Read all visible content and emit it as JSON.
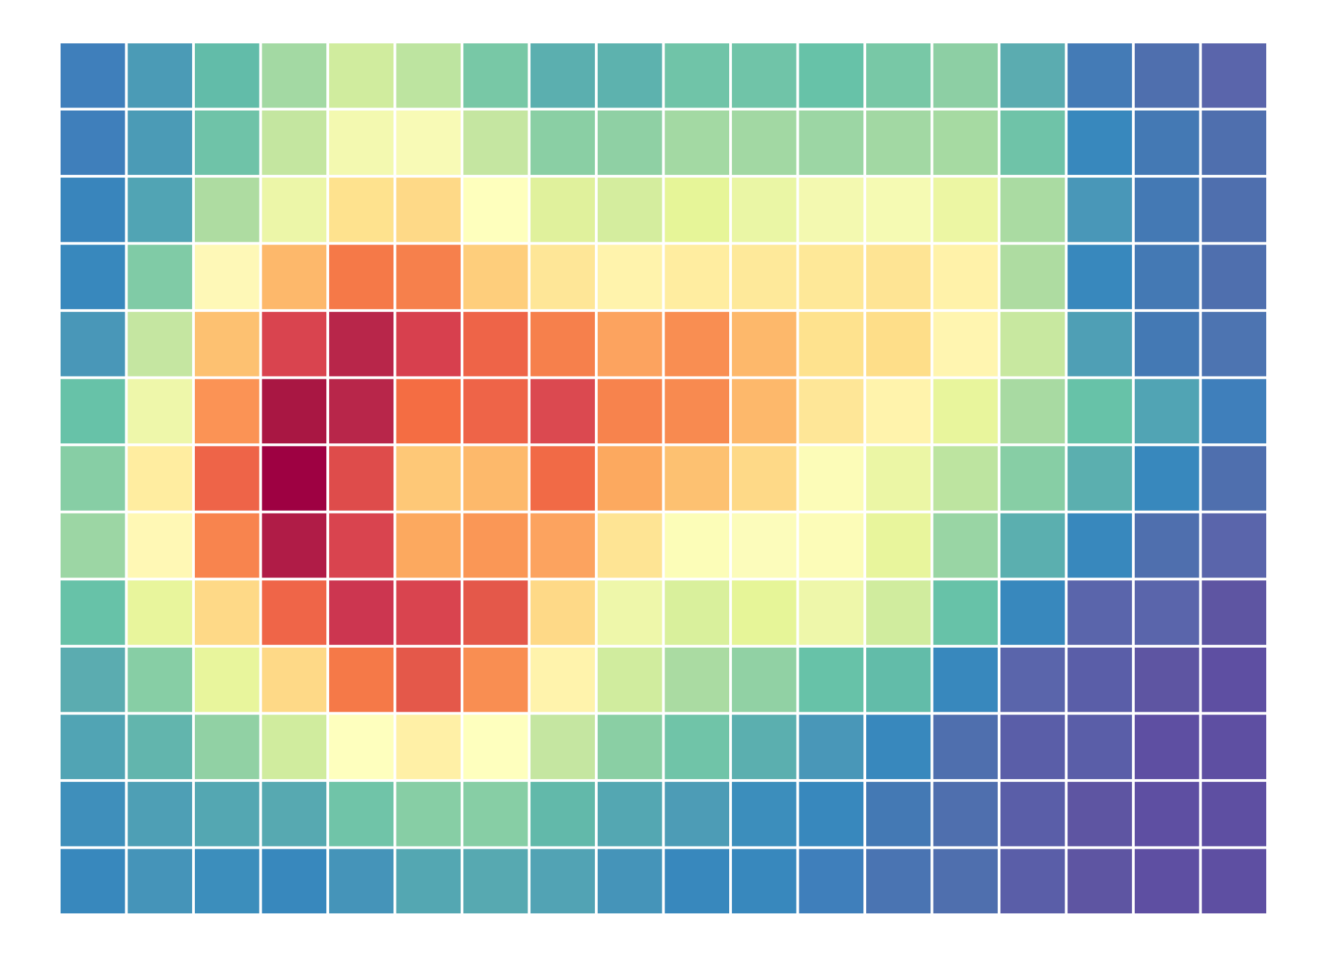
{
  "chart_data": {
    "type": "heatmap",
    "title": "",
    "xlabel": "",
    "ylabel": "",
    "axes_visible": false,
    "colorbar": false,
    "grid": true,
    "cell_border_color": "#ffffff",
    "colormap": "Spectral",
    "rows": 13,
    "cols": 18,
    "colors": [
      [
        "#3f7fbb",
        "#4b9bb6",
        "#62bca9",
        "#a3d9a3",
        "#d0ec9e",
        "#bde4a0",
        "#78c8a6",
        "#5bafaf",
        "#5db2ae",
        "#70c4a8",
        "#70c4a8",
        "#67c2a8",
        "#78c8a6",
        "#8dcfa4",
        "#5bacb0",
        "#447bb6",
        "#4f6fae",
        "#5a65ab"
      ],
      [
        "#3f7fbb",
        "#4b9bb6",
        "#6fc3a8",
        "#c4e6a0",
        "#f3f9b0",
        "#f8fab6",
        "#c5e6a1",
        "#8acfa4",
        "#8fd0a4",
        "#a3d9a3",
        "#a2d8a3",
        "#9cd6a4",
        "#a2d8a3",
        "#a6daa2",
        "#6fc3a8",
        "#3888bd",
        "#4479b4",
        "#4f6fae"
      ],
      [
        "#3985bc",
        "#51a4b4",
        "#aedca1",
        "#ecf6a8",
        "#fee28e",
        "#fed987",
        "#feffbd",
        "#e0f19c",
        "#d4ed9e",
        "#e6f598",
        "#eaf6a5",
        "#f3f9b0",
        "#f5fab3",
        "#ecf6a3",
        "#aadba2",
        "#4997b8",
        "#4479b4",
        "#4f6fae"
      ],
      [
        "#3888bd",
        "#80cba6",
        "#fef8b7",
        "#fdb86b",
        "#f57948",
        "#f6804c",
        "#fece7c",
        "#fee697",
        "#fff3ac",
        "#ffeda0",
        "#fee99a",
        "#fee898",
        "#fee494",
        "#fff2a9",
        "#aedca1",
        "#3888bd",
        "#4479b4",
        "#4f6fae"
      ],
      [
        "#4997b8",
        "#c5e6a1",
        "#fdc171",
        "#d9444f",
        "#b8264a",
        "#d7404e",
        "#ee6448",
        "#f6804c",
        "#fca35f",
        "#f98e52",
        "#fdb86b",
        "#fee28e",
        "#fede89",
        "#fff5b0",
        "#c8e8a0",
        "#4f9fb5",
        "#4479b4",
        "#4d74b1"
      ],
      [
        "#67c2a8",
        "#eef7aa",
        "#fb9355",
        "#a91743",
        "#b8264a",
        "#f46d43",
        "#ee6448",
        "#db4950",
        "#f7834d",
        "#f88a50",
        "#fdb86b",
        "#fee697",
        "#fff3ac",
        "#e8f59c",
        "#a8daa2",
        "#67c2a8",
        "#51a4b4",
        "#3f7fbb"
      ],
      [
        "#87cea5",
        "#ffeda0",
        "#ee6448",
        "#9e0142",
        "#de4c4b",
        "#fec877",
        "#fdb96b",
        "#f16a46",
        "#fca95f",
        "#fdc171",
        "#fed987",
        "#fcfcb8",
        "#ebf6a5",
        "#bde4a0",
        "#87cea5",
        "#5bafaf",
        "#3888bd",
        "#4f6fae"
      ],
      [
        "#9cd6a4",
        "#fff8b5",
        "#f8844e",
        "#b01c47",
        "#d9444f",
        "#fca95f",
        "#fa9756",
        "#fca35f",
        "#fee494",
        "#fcfdb8",
        "#fcfcbb",
        "#fcfcb8",
        "#e8f59c",
        "#99d5a4",
        "#5bafaf",
        "#3888bd",
        "#4f6fae",
        "#5a65ab"
      ],
      [
        "#67c2a8",
        "#e8f59c",
        "#fed987",
        "#ef6548",
        "#cc3650",
        "#d9444f",
        "#e4584a",
        "#fed987",
        "#eef7aa",
        "#d9f09c",
        "#e6f598",
        "#eef7aa",
        "#d0ec9e",
        "#67c2a8",
        "#3888bd",
        "#5a65ab",
        "#5a65ab",
        "#5e55a2"
      ],
      [
        "#5bacb0",
        "#87cea5",
        "#e8f59c",
        "#fed987",
        "#f57948",
        "#e4584a",
        "#f98e52",
        "#fff3ac",
        "#d0ec9e",
        "#aadba2",
        "#91d1a4",
        "#67c2a8",
        "#62bca9",
        "#3888bd",
        "#5a65ab",
        "#5a5ea8",
        "#5e55a2",
        "#5e4fa2"
      ],
      [
        "#51a4b4",
        "#62b5ad",
        "#91d1a4",
        "#d0ec9e",
        "#feffbe",
        "#fff0a6",
        "#feffbe",
        "#c5e6a1",
        "#8acfa4",
        "#70c4a8",
        "#5bafaf",
        "#4997b8",
        "#3888bd",
        "#4f6fae",
        "#5a5ea8",
        "#5a5ea8",
        "#5e4fa2",
        "#5e4fa2"
      ],
      [
        "#3f8fbb",
        "#4e9fb5",
        "#54a7b2",
        "#57a9b1",
        "#70c4a8",
        "#87cea5",
        "#87cea5",
        "#62b9aa",
        "#54a7b2",
        "#4d9cb6",
        "#3c8ebc",
        "#3888bd",
        "#4479b4",
        "#4f6fae",
        "#5a5ea8",
        "#5e55a2",
        "#5e4fa2",
        "#5e4fa2"
      ],
      [
        "#3888bd",
        "#4594b9",
        "#3c8ebc",
        "#3888bd",
        "#4594b9",
        "#54a7b2",
        "#57a9b1",
        "#52a3b4",
        "#4594b9",
        "#3888bd",
        "#3888bd",
        "#3f7fbb",
        "#4a74b2",
        "#4f6fae",
        "#5a5ea8",
        "#5e55a2",
        "#5e4fa2",
        "#5e4fa2"
      ]
    ]
  }
}
